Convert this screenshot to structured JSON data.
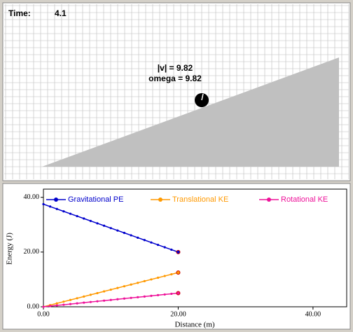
{
  "simulation": {
    "time_label": "Time:",
    "time_value": "4.1",
    "velocity_text": "|v| = 9.82",
    "omega_text": "omega = 9.82"
  },
  "chart_data": {
    "type": "line",
    "x_label": "Distance (m)",
    "y_label": "Energy (J)",
    "xlim": [
      0,
      45
    ],
    "ylim": [
      0,
      43
    ],
    "xticks": [
      {
        "value": 0,
        "label": "0.00"
      },
      {
        "value": 20,
        "label": "20.00"
      },
      {
        "value": 40,
        "label": "40.00"
      }
    ],
    "yticks": [
      {
        "value": 0,
        "label": "0.00"
      },
      {
        "value": 20,
        "label": "20.00"
      },
      {
        "value": 40,
        "label": "40.00"
      }
    ],
    "x": [
      0,
      1,
      2,
      3,
      4,
      5,
      6,
      7,
      8,
      9,
      10,
      11,
      12,
      13,
      14,
      15,
      16,
      17,
      18,
      19,
      20
    ],
    "series": [
      {
        "name": "Gravitational PE",
        "color": "#0000cc",
        "values": [
          37.5,
          36.625,
          35.75,
          34.875,
          34,
          33.125,
          32.25,
          31.375,
          30.5,
          29.625,
          28.75,
          27.875,
          27,
          26.125,
          25.25,
          24.375,
          23.5,
          22.625,
          21.75,
          20.875,
          20
        ]
      },
      {
        "name": "Translational KE",
        "color": "#ff9900",
        "values": [
          0,
          0.625,
          1.25,
          1.875,
          2.5,
          3.125,
          3.75,
          4.375,
          5,
          5.625,
          6.25,
          6.875,
          7.5,
          8.125,
          8.75,
          9.375,
          10,
          10.625,
          11.25,
          11.875,
          12.5
        ]
      },
      {
        "name": "Rotational KE",
        "color": "#ee1199",
        "values": [
          0,
          0.25,
          0.5,
          0.75,
          1,
          1.25,
          1.5,
          1.75,
          2,
          2.25,
          2.5,
          2.75,
          3,
          3.25,
          3.5,
          3.75,
          4,
          4.25,
          4.5,
          4.75,
          5
        ]
      }
    ]
  }
}
